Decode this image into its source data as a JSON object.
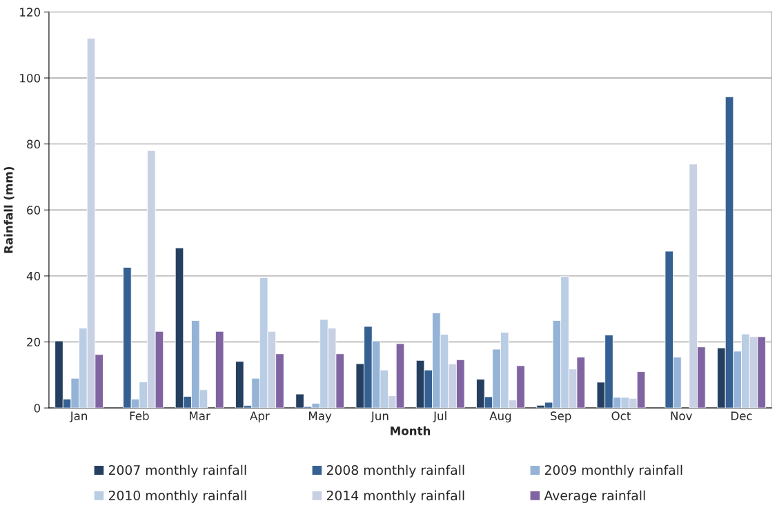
{
  "chart_data": {
    "type": "bar",
    "xlabel": "Month",
    "ylabel": "Rainfall (mm)",
    "categories": [
      "Jan",
      "Feb",
      "Mar",
      "Apr",
      "May",
      "Jun",
      "Jul",
      "Aug",
      "Sep",
      "Oct",
      "Nov",
      "Dec"
    ],
    "series": [
      {
        "name": "2007 monthly rainfall",
        "color": "#243f60",
        "values": [
          20.3,
          null,
          48.5,
          14.1,
          4.2,
          13.4,
          14.4,
          8.7,
          0.8,
          7.8,
          null,
          18.2
        ]
      },
      {
        "name": "2008 monthly rainfall",
        "color": "#366092",
        "values": [
          2.7,
          42.6,
          3.5,
          0.7,
          0.4,
          24.7,
          11.5,
          3.4,
          1.7,
          22.1,
          47.5,
          94.3
        ]
      },
      {
        "name": "2009 monthly rainfall",
        "color": "#95b3d7",
        "values": [
          9,
          2.7,
          26.5,
          9,
          1.4,
          20.3,
          28.8,
          17.8,
          26.5,
          3.2,
          15.4,
          17.2
        ]
      },
      {
        "name": "2010 monthly rainfall",
        "color": "#b9cde5",
        "values": [
          24.2,
          7.9,
          5.5,
          39.5,
          26.8,
          11.5,
          22.3,
          22.9,
          39.9,
          3.2,
          null,
          22.4
        ]
      },
      {
        "name": "2014 monthly rainfall",
        "color": "#c8d0e3",
        "values": [
          112,
          78,
          null,
          23.2,
          24.2,
          3.7,
          13.3,
          2.4,
          11.8,
          2.9,
          73.9,
          21.6
        ]
      },
      {
        "name": "Average rainfall",
        "color": "#8064a2",
        "values": [
          16.2,
          23.2,
          23.2,
          16.4,
          16.4,
          19.5,
          14.6,
          12.8,
          15.4,
          11,
          18.5,
          21.6
        ]
      }
    ],
    "ylim": [
      0,
      120
    ],
    "yticks": [
      0,
      20,
      40,
      60,
      80,
      100,
      120
    ],
    "grid": "y",
    "legend": "bottom"
  }
}
